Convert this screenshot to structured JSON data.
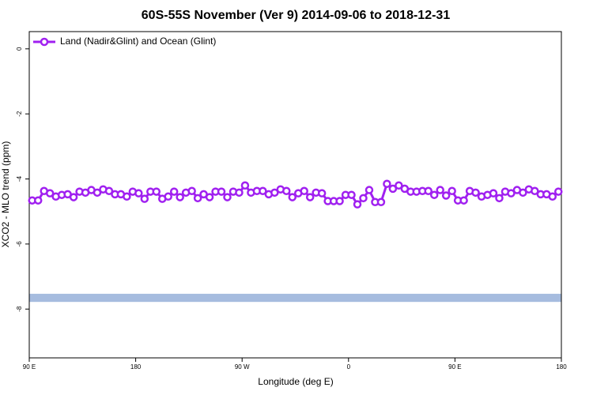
{
  "chart_data": {
    "type": "line",
    "title": "60S-55S November (Ver 9)   2014-09-06 to 2018-12-31",
    "x_label": "Longitude (deg E)",
    "y_label": "XCO2 - MLO trend (ppm)",
    "xlim": [
      90,
      540
    ],
    "xticks": [
      {
        "value": 90,
        "label": "90 E"
      },
      180,
      {
        "value": 270,
        "label": "90 W"
      },
      {
        "value": 360,
        "label": "0"
      },
      {
        "value": 450,
        "label": "90 E"
      },
      {
        "value": 540,
        "label": "180"
      }
    ],
    "ylim": [
      -9.5,
      0.53
    ],
    "yticks": [
      0,
      -2,
      -4,
      -6,
      -8
    ],
    "legend": "top-left",
    "band": {
      "ymin": -7.78,
      "ymax": -7.53,
      "color": "#a6bcdf"
    },
    "x": [
      92.5,
      97.5,
      102.5,
      107.5,
      112.5,
      117.5,
      122.5,
      127.5,
      132.5,
      137.5,
      142.5,
      147.5,
      152.5,
      157.5,
      162.5,
      167.5,
      172.5,
      177.5,
      182.5,
      187.5,
      192.5,
      197.5,
      202.5,
      207.5,
      212.5,
      217.5,
      222.5,
      227.5,
      232.5,
      237.5,
      242.5,
      247.5,
      252.5,
      257.5,
      262.5,
      267.5,
      272.5,
      277.5,
      282.5,
      287.5,
      292.5,
      297.5,
      302.5,
      307.5,
      312.5,
      317.5,
      322.5,
      327.5,
      332.5,
      337.5,
      342.5,
      347.5,
      352.5,
      357.5,
      362.5,
      367.5,
      372.5,
      377.5,
      382.5,
      387.5,
      392.5,
      397.5,
      402.5,
      407.5,
      412.5,
      417.5,
      422.5,
      427.5,
      432.5,
      437.5,
      442.5,
      447.5,
      452.5,
      457.5,
      462.5,
      467.5,
      472.5,
      477.5,
      482.5,
      487.5,
      492.5,
      497.5,
      502.5,
      507.5,
      512.5,
      517.5,
      522.5,
      527.5,
      532.5,
      537.5
    ],
    "series": [
      {
        "name": "Land (Nadir&Glint) and Ocean (Glint)",
        "color": "#a020f0",
        "values": [
          -4.66,
          -4.66,
          -4.37,
          -4.44,
          -4.54,
          -4.49,
          -4.47,
          -4.56,
          -4.39,
          -4.42,
          -4.34,
          -4.42,
          -4.32,
          -4.37,
          -4.47,
          -4.47,
          -4.54,
          -4.39,
          -4.44,
          -4.61,
          -4.39,
          -4.39,
          -4.61,
          -4.54,
          -4.39,
          -4.56,
          -4.42,
          -4.37,
          -4.59,
          -4.47,
          -4.56,
          -4.39,
          -4.39,
          -4.56,
          -4.39,
          -4.42,
          -4.2,
          -4.42,
          -4.37,
          -4.37,
          -4.47,
          -4.42,
          -4.32,
          -4.37,
          -4.56,
          -4.44,
          -4.37,
          -4.56,
          -4.42,
          -4.44,
          -4.68,
          -4.68,
          -4.68,
          -4.49,
          -4.49,
          -4.78,
          -4.59,
          -4.34,
          -4.71,
          -4.71,
          -4.15,
          -4.3,
          -4.2,
          -4.3,
          -4.39,
          -4.39,
          -4.37,
          -4.37,
          -4.49,
          -4.34,
          -4.51,
          -4.37,
          -4.66,
          -4.66,
          -4.37,
          -4.42,
          -4.54,
          -4.49,
          -4.44,
          -4.59,
          -4.39,
          -4.44,
          -4.34,
          -4.42,
          -4.32,
          -4.37,
          -4.47,
          -4.47,
          -4.54,
          -4.39
        ]
      }
    ]
  }
}
